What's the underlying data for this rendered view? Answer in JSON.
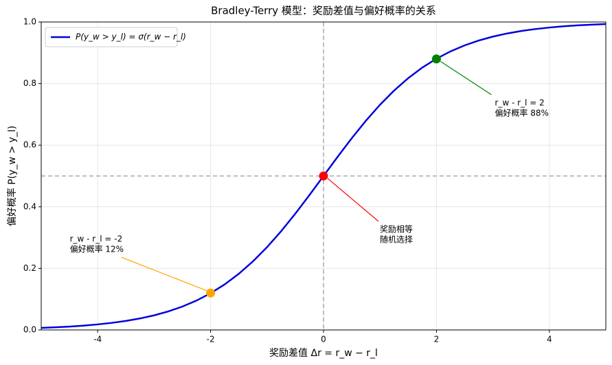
{
  "chart_data": {
    "type": "line",
    "title": "Bradley-Terry 模型：奖励差值与偏好概率的关系",
    "xlabel": "奖励差值 Δr = r_w − r_l",
    "ylabel": "偏好概率 P(y_w > y_l)",
    "x": [
      -5,
      -4.75,
      -4.5,
      -4.25,
      -4,
      -3.75,
      -3.5,
      -3.25,
      -3,
      -2.75,
      -2.5,
      -2.25,
      -2,
      -1.75,
      -1.5,
      -1.25,
      -1,
      -0.75,
      -0.5,
      -0.25,
      0,
      0.25,
      0.5,
      0.75,
      1,
      1.25,
      1.5,
      1.75,
      2,
      2.25,
      2.5,
      2.75,
      3,
      3.25,
      3.5,
      3.75,
      4,
      4.25,
      4.5,
      4.75,
      5
    ],
    "series": [
      {
        "name": "P(y_w > y_l) = σ(r_w − r_l)",
        "color": "#0000dd",
        "values": [
          0.0067,
          0.0086,
          0.011,
          0.014,
          0.018,
          0.023,
          0.0293,
          0.0373,
          0.0474,
          0.0601,
          0.0759,
          0.0953,
          0.1192,
          0.148,
          0.1824,
          0.2227,
          0.2689,
          0.3208,
          0.3775,
          0.4378,
          0.5,
          0.5622,
          0.6225,
          0.6792,
          0.7311,
          0.7773,
          0.8176,
          0.852,
          0.8808,
          0.9047,
          0.9241,
          0.9399,
          0.9526,
          0.9627,
          0.9707,
          0.977,
          0.982,
          0.986,
          0.989,
          0.9914,
          0.9933
        ]
      }
    ],
    "points": [
      {
        "x": -2,
        "y": 0.12,
        "color": "orange",
        "text": [
          "r_w - r_l = -2",
          "偏好概率 12%"
        ]
      },
      {
        "x": 0,
        "y": 0.5,
        "color": "red",
        "text": [
          "奖励相等",
          "随机选择"
        ]
      },
      {
        "x": 2,
        "y": 0.88,
        "color": "green",
        "text": [
          "r_w - r_l = 2",
          "偏好概率 88%"
        ]
      }
    ],
    "vlines": [
      0
    ],
    "hlines": [
      0.5
    ],
    "xlim": [
      -5,
      5
    ],
    "xticks": [
      -4,
      -2,
      0,
      2,
      4
    ],
    "ylim": [
      0,
      1
    ],
    "yticks": [
      {
        "value": 0,
        "label": "0.0"
      },
      0.2,
      0.4,
      0.6,
      0.8,
      {
        "value": 1,
        "label": "1.0"
      }
    ],
    "grid": true,
    "legend": "upper left"
  }
}
